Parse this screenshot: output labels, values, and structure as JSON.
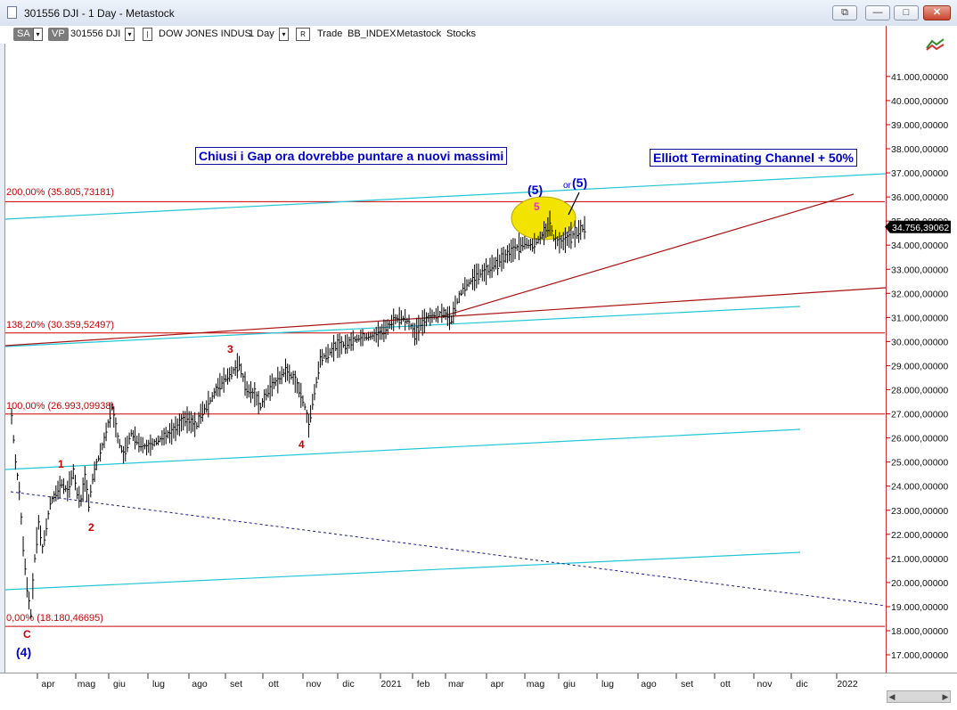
{
  "window": {
    "title": "301556 DJI - 1 Day - Metastock",
    "buttons": {
      "restore": "⧉",
      "minimize": "—",
      "maximize": "□",
      "close": "✕"
    }
  },
  "toolbar": {
    "sa": "SA",
    "vp": "VP",
    "symbol": "301556 DJI",
    "name": "DOW JONES INDUS",
    "period": "1 Day",
    "r": "R",
    "trade": "Trade",
    "index": "BB_INDEX",
    "source": "Metastock",
    "category": "Stocks",
    "drop": "▾",
    "pipe": "|"
  },
  "annotations": {
    "box1": "Chiusi i Gap ora dovrebbe puntare a nuovi massimi",
    "box2": "Elliott Terminating Channel + 50%",
    "fib200": "200,00% (35.805,73181)",
    "fib138": "138,20% (30.359,52497)",
    "fib100": "100,00% (26.993,09938)",
    "fib0": "0,00% (18.180,46695)",
    "w1": "1",
    "w2": "2",
    "w3": "3",
    "w4": "4",
    "w5": "5",
    "wC": "C",
    "w4big": "(4)",
    "w5big": "(5)",
    "w5alt": "(5)",
    "or": "or",
    "last_price": "34.756,39062"
  },
  "colors": {
    "price": "#000000",
    "fib": "#cc0000",
    "channel": "#22c6d6",
    "trend": "#aa1111",
    "wave_red": "#cc0000",
    "wave_blue": "#0000c8",
    "highlight": "#f2e300"
  },
  "chart_data": {
    "type": "line",
    "title": "",
    "xlabel": "",
    "ylabel": "",
    "x_ticks": [
      "apr",
      "mag",
      "giu",
      "lug",
      "ago",
      "set",
      "ott",
      "nov",
      "dic",
      "2021",
      "feb",
      "mar",
      "apr",
      "mag",
      "giu",
      "lug",
      "ago",
      "set",
      "ott",
      "nov",
      "dic",
      "2022"
    ],
    "y_ticks": [
      "17.000,00000",
      "18.000,00000",
      "19.000,00000",
      "20.000,00000",
      "21.000,00000",
      "22.000,00000",
      "23.000,00000",
      "24.000,00000",
      "25.000,00000",
      "26.000,00000",
      "27.000,00000",
      "28.000,00000",
      "29.000,00000",
      "30.000,00000",
      "31.000,00000",
      "32.000,00000",
      "33.000,00000",
      "34.000,00000",
      "35.000,00000",
      "36.000,00000",
      "37.000,00000",
      "38.000,00000",
      "39.000,00000",
      "40.000,00000",
      "41.000,00000"
    ],
    "ylim": [
      16500,
      42000
    ],
    "series": [
      {
        "values_by_month_index": [
          [
            -0.9,
            26900
          ],
          [
            -0.8,
            25000
          ],
          [
            -0.7,
            23800
          ],
          [
            -0.6,
            21500
          ],
          [
            -0.5,
            19800
          ],
          [
            -0.4,
            18700
          ],
          [
            -0.3,
            21000
          ],
          [
            -0.2,
            22500
          ],
          [
            -0.1,
            21400
          ],
          [
            0.0,
            22300
          ],
          [
            0.1,
            23300
          ],
          [
            0.25,
            23700
          ],
          [
            0.4,
            24100
          ],
          [
            0.55,
            23800
          ],
          [
            0.7,
            24600
          ],
          [
            0.8,
            23700
          ],
          [
            0.9,
            23400
          ],
          [
            1.0,
            24300
          ],
          [
            1.1,
            23300
          ],
          [
            1.2,
            24300
          ],
          [
            1.3,
            24900
          ],
          [
            1.5,
            25900
          ],
          [
            1.7,
            27300
          ],
          [
            1.85,
            26000
          ],
          [
            2.0,
            25300
          ],
          [
            2.2,
            26200
          ],
          [
            2.4,
            25800
          ],
          [
            2.6,
            25600
          ],
          [
            2.8,
            25800
          ],
          [
            3.0,
            26000
          ],
          [
            3.3,
            26300
          ],
          [
            3.6,
            26800
          ],
          [
            3.9,
            26500
          ],
          [
            4.0,
            27000
          ],
          [
            4.2,
            27400
          ],
          [
            4.4,
            28000
          ],
          [
            4.6,
            28400
          ],
          [
            4.8,
            28700
          ],
          [
            5.0,
            29100
          ],
          [
            5.1,
            28500
          ],
          [
            5.2,
            28000
          ],
          [
            5.4,
            27800
          ],
          [
            5.55,
            27300
          ],
          [
            5.7,
            27800
          ],
          [
            5.85,
            28200
          ],
          [
            6.0,
            28400
          ],
          [
            6.2,
            28800
          ],
          [
            6.4,
            28500
          ],
          [
            6.55,
            28000
          ],
          [
            6.7,
            27300
          ],
          [
            6.8,
            26500
          ],
          [
            6.9,
            27500
          ],
          [
            7.0,
            28300
          ],
          [
            7.1,
            29300
          ],
          [
            7.3,
            29500
          ],
          [
            7.5,
            29800
          ],
          [
            7.8,
            29900
          ],
          [
            8.0,
            30100
          ],
          [
            8.3,
            30200
          ],
          [
            8.6,
            30300
          ],
          [
            8.8,
            30500
          ],
          [
            9.0,
            30900
          ],
          [
            9.2,
            31000
          ],
          [
            9.4,
            30800
          ],
          [
            9.55,
            30300
          ],
          [
            9.7,
            30700
          ],
          [
            9.9,
            31000
          ],
          [
            10.1,
            31100
          ],
          [
            10.3,
            31200
          ],
          [
            10.5,
            30900
          ],
          [
            10.6,
            31500
          ],
          [
            10.8,
            32200
          ],
          [
            11.0,
            32500
          ],
          [
            11.2,
            32800
          ],
          [
            11.4,
            32900
          ],
          [
            11.6,
            33200
          ],
          [
            11.8,
            33400
          ],
          [
            12.0,
            33700
          ],
          [
            12.2,
            33900
          ],
          [
            12.4,
            34100
          ],
          [
            12.6,
            34000
          ],
          [
            12.8,
            34300
          ],
          [
            12.95,
            34600
          ],
          [
            13.05,
            34900
          ],
          [
            13.15,
            34300
          ],
          [
            13.3,
            34100
          ],
          [
            13.45,
            34200
          ],
          [
            13.6,
            34400
          ],
          [
            13.75,
            34500
          ],
          [
            13.9,
            34700
          ],
          [
            14.0,
            34756
          ]
        ]
      }
    ]
  }
}
